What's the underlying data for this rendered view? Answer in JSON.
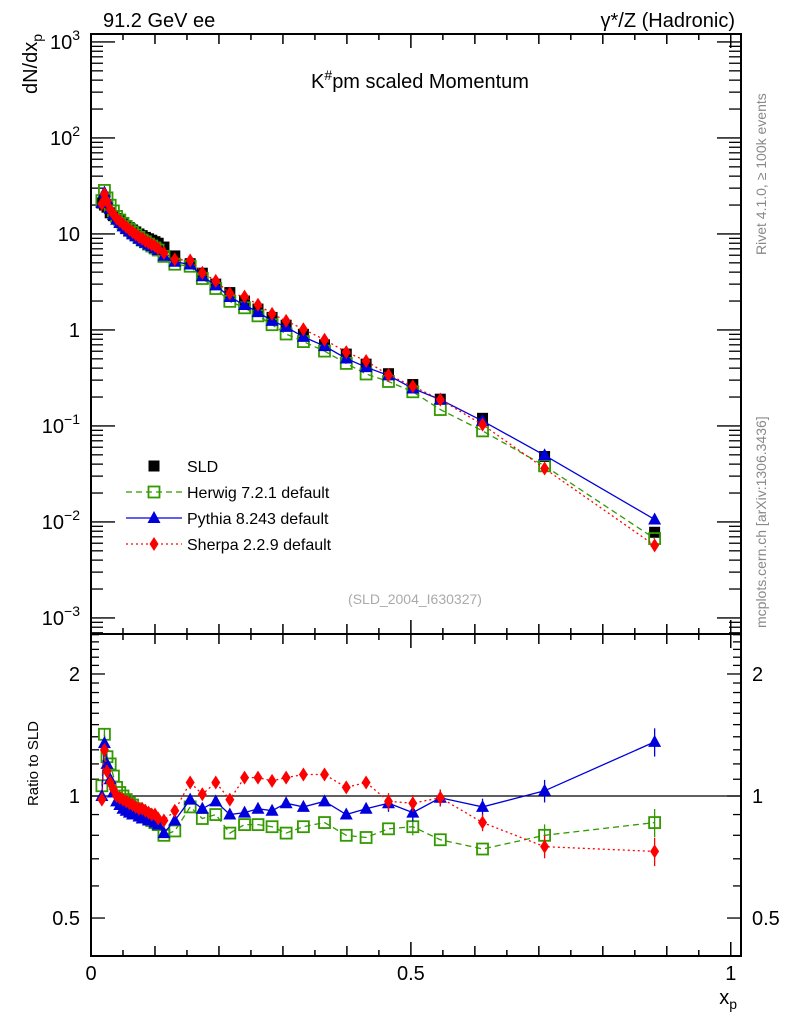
{
  "header": {
    "left": "91.2 GeV ee",
    "right_main": "γ*/Z (Hadronic)",
    "side_top": "Rivet 4.1.0, ≥ 100k events",
    "side_bottom": "mcplots.cern.ch [arXiv:1306.3436]"
  },
  "chart_data": {
    "type": "scatter",
    "title": "K#pm scaled Momentum",
    "analysis_tag": "(SLD_2004_I630327)",
    "xlabel": "x_p",
    "ylabel": "dN/dx_p",
    "ratio_ylabel": "Ratio to SLD",
    "xlim": [
      0,
      1.016
    ],
    "ylim": [
      0.00068,
      1210
    ],
    "ratio_ylim": [
      0.403,
      2.51
    ],
    "yscale": "log",
    "ratio_yscale": "log",
    "xticks": [
      0,
      0.5,
      1
    ],
    "xtick_labels": [
      "0",
      "0.5",
      "1"
    ],
    "yticks": [
      1000,
      100,
      10,
      1,
      0.1,
      0.01,
      0.001
    ],
    "ytick_labels": [
      "10^3",
      "10^2",
      "10",
      "1",
      "10^-1",
      "10^-2",
      "10^-3"
    ],
    "ratio_yticks": [
      2,
      1,
      0.5
    ],
    "ratio_ytick_labels": [
      "2",
      "1",
      "0.5"
    ],
    "legend_position": "lower-left",
    "x": [
      0.017,
      0.021,
      0.025,
      0.03,
      0.035,
      0.04,
      0.045,
      0.05,
      0.055,
      0.06,
      0.065,
      0.07,
      0.075,
      0.08,
      0.085,
      0.09,
      0.095,
      0.1,
      0.105,
      0.114,
      0.131,
      0.155,
      0.174,
      0.195,
      0.217,
      0.24,
      0.261,
      0.283,
      0.305,
      0.332,
      0.365,
      0.399,
      0.43,
      0.465,
      0.503,
      0.546,
      0.612,
      0.709,
      0.881
    ],
    "reference": {
      "name": "SLD",
      "color": "#000000",
      "values": [
        21,
        20,
        19,
        16.6,
        15.5,
        14.5,
        13.7,
        12.9,
        12.2,
        11.6,
        11.0,
        10.5,
        10.0,
        9.6,
        9.2,
        8.9,
        8.6,
        8.3,
        8.0,
        7.3,
        5.9,
        4.9,
        3.9,
        3.0,
        2.45,
        2.0,
        1.65,
        1.35,
        1.12,
        0.9,
        0.7,
        0.56,
        0.44,
        0.35,
        0.27,
        0.19,
        0.12,
        0.048,
        0.0078
      ],
      "rel_errors": [
        0.02,
        0.02,
        0.02,
        0.02,
        0.02,
        0.02,
        0.02,
        0.02,
        0.02,
        0.02,
        0.02,
        0.02,
        0.02,
        0.02,
        0.02,
        0.02,
        0.02,
        0.02,
        0.02,
        0.02,
        0.02,
        0.02,
        0.02,
        0.02,
        0.02,
        0.02,
        0.02,
        0.02,
        0.02,
        0.02,
        0.02,
        0.02,
        0.02,
        0.03,
        0.03,
        0.03,
        0.03,
        0.04,
        0.05
      ]
    },
    "series": [
      {
        "name": "Herwig 7.2.1 default",
        "color": "#339900",
        "marker": "open-square",
        "line": "dashed",
        "ratio": [
          1.06,
          1.42,
          1.25,
          1.2,
          1.12,
          1.05,
          1.02,
          1.0,
          0.98,
          0.96,
          0.95,
          0.93,
          0.92,
          0.9,
          0.9,
          0.88,
          0.87,
          0.86,
          0.85,
          0.8,
          0.82,
          0.94,
          0.88,
          0.9,
          0.81,
          0.85,
          0.85,
          0.84,
          0.81,
          0.84,
          0.86,
          0.8,
          0.79,
          0.83,
          0.84,
          0.78,
          0.74,
          0.8,
          0.86
        ]
      },
      {
        "name": "Pythia 8.243 default",
        "color": "#0000dd",
        "marker": "triangle",
        "line": "solid",
        "ratio": [
          1.0,
          1.35,
          1.2,
          1.1,
          1.02,
          0.97,
          0.95,
          0.93,
          0.92,
          0.91,
          0.9,
          0.9,
          0.89,
          0.88,
          0.88,
          0.87,
          0.87,
          0.86,
          0.85,
          0.81,
          0.87,
          0.98,
          0.93,
          0.97,
          0.9,
          0.91,
          0.93,
          0.92,
          0.96,
          0.94,
          0.97,
          0.9,
          0.93,
          0.96,
          0.91,
          0.99,
          0.94,
          1.03,
          1.36
        ]
      },
      {
        "name": "Sherpa 2.2.9 default",
        "color": "#ff0000",
        "marker": "diamond",
        "line": "dotted",
        "ratio": [
          0.98,
          1.3,
          1.15,
          1.08,
          1.04,
          1.0,
          0.99,
          0.98,
          0.97,
          0.96,
          0.95,
          0.94,
          0.93,
          0.93,
          0.92,
          0.91,
          0.9,
          0.9,
          0.88,
          0.87,
          0.92,
          1.08,
          1.01,
          1.08,
          0.98,
          1.11,
          1.11,
          1.09,
          1.11,
          1.13,
          1.13,
          1.05,
          1.08,
          0.97,
          0.96,
          0.99,
          0.86,
          0.75,
          0.73
        ]
      }
    ]
  }
}
